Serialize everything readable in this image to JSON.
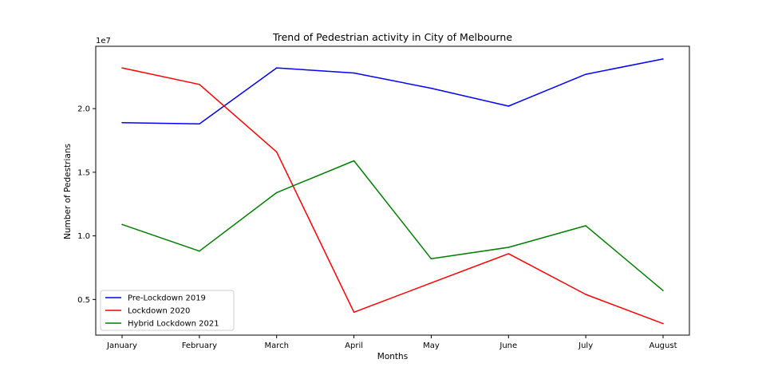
{
  "chart_data": {
    "type": "line",
    "title": "Trend of Pedestrian activity in City of Melbourne",
    "xlabel": "Months",
    "ylabel": "Number of Pedestrians",
    "y_offset_label": "1e7",
    "y_scale": 10000000,
    "categories": [
      "January",
      "February",
      "March",
      "April",
      "May",
      "June",
      "July",
      "August"
    ],
    "ylim": [
      2200000,
      24900000
    ],
    "yticks": [
      {
        "value": 5000000,
        "label": "0.5"
      },
      {
        "value": 10000000,
        "label": "1.0"
      },
      {
        "value": 15000000,
        "label": "1.5"
      },
      {
        "value": 20000000,
        "label": "2.0"
      }
    ],
    "grid": false,
    "legend_position": "lower-left",
    "series": [
      {
        "name": "Pre-Lockdown 2019",
        "color": "#0000ff",
        "values": [
          18900000,
          18800000,
          23200000,
          22800000,
          21600000,
          20200000,
          22700000,
          23900000
        ]
      },
      {
        "name": "Lockdown 2020",
        "color": "#ff0000",
        "values": [
          23200000,
          21900000,
          16600000,
          4000000,
          6300000,
          8600000,
          5400000,
          3100000
        ]
      },
      {
        "name": "Hybrid Lockdown 2021",
        "color": "#008000",
        "values": [
          10900000,
          8800000,
          13400000,
          15900000,
          8200000,
          9100000,
          10800000,
          5700000
        ]
      }
    ]
  }
}
